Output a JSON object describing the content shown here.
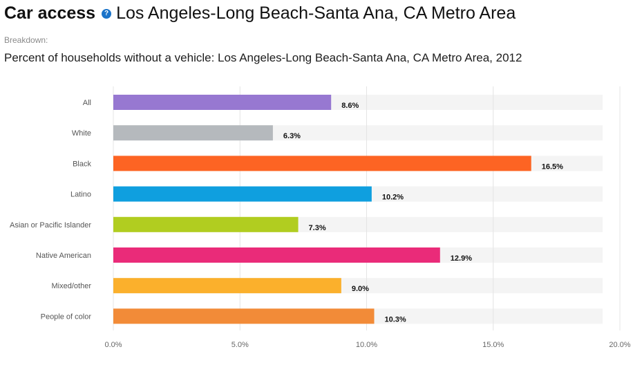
{
  "header": {
    "title_bold": "Car access",
    "help_icon": "?",
    "title_region": "Los Angeles-Long Beach-Santa Ana, CA Metro Area",
    "breakdown_label": "Breakdown:",
    "subtitle": "Percent of households without a vehicle: Los Angeles-Long Beach-Santa Ana, CA Metro Area, 2012"
  },
  "colors": {
    "track": "#f4f4f4",
    "grid": "#e4e4e4"
  },
  "chart_data": {
    "type": "bar",
    "orientation": "horizontal",
    "title": "Percent of households without a vehicle: Los Angeles-Long Beach-Santa Ana, CA Metro Area, 2012",
    "xlabel": "",
    "ylabel": "",
    "xlim": [
      0,
      20
    ],
    "ticks": [
      0,
      5,
      10,
      15,
      20
    ],
    "tick_labels": [
      "0.0%",
      "5.0%",
      "10.0%",
      "15.0%",
      "20.0%"
    ],
    "grid": true,
    "categories": [
      "All",
      "White",
      "Black",
      "Latino",
      "Asian or Pacific Islander",
      "Native American",
      "Mixed/other",
      "People of color"
    ],
    "values": [
      8.6,
      6.3,
      16.5,
      10.2,
      7.3,
      12.9,
      9.0,
      10.3
    ],
    "value_labels": [
      "8.6%",
      "6.3%",
      "16.5%",
      "10.2%",
      "7.3%",
      "12.9%",
      "9.0%",
      "10.3%"
    ],
    "bar_colors": [
      "#9778d1",
      "#b5b9bd",
      "#fd6423",
      "#0f9fdf",
      "#b1cd20",
      "#ea2b79",
      "#fbb02c",
      "#f28b38"
    ]
  }
}
